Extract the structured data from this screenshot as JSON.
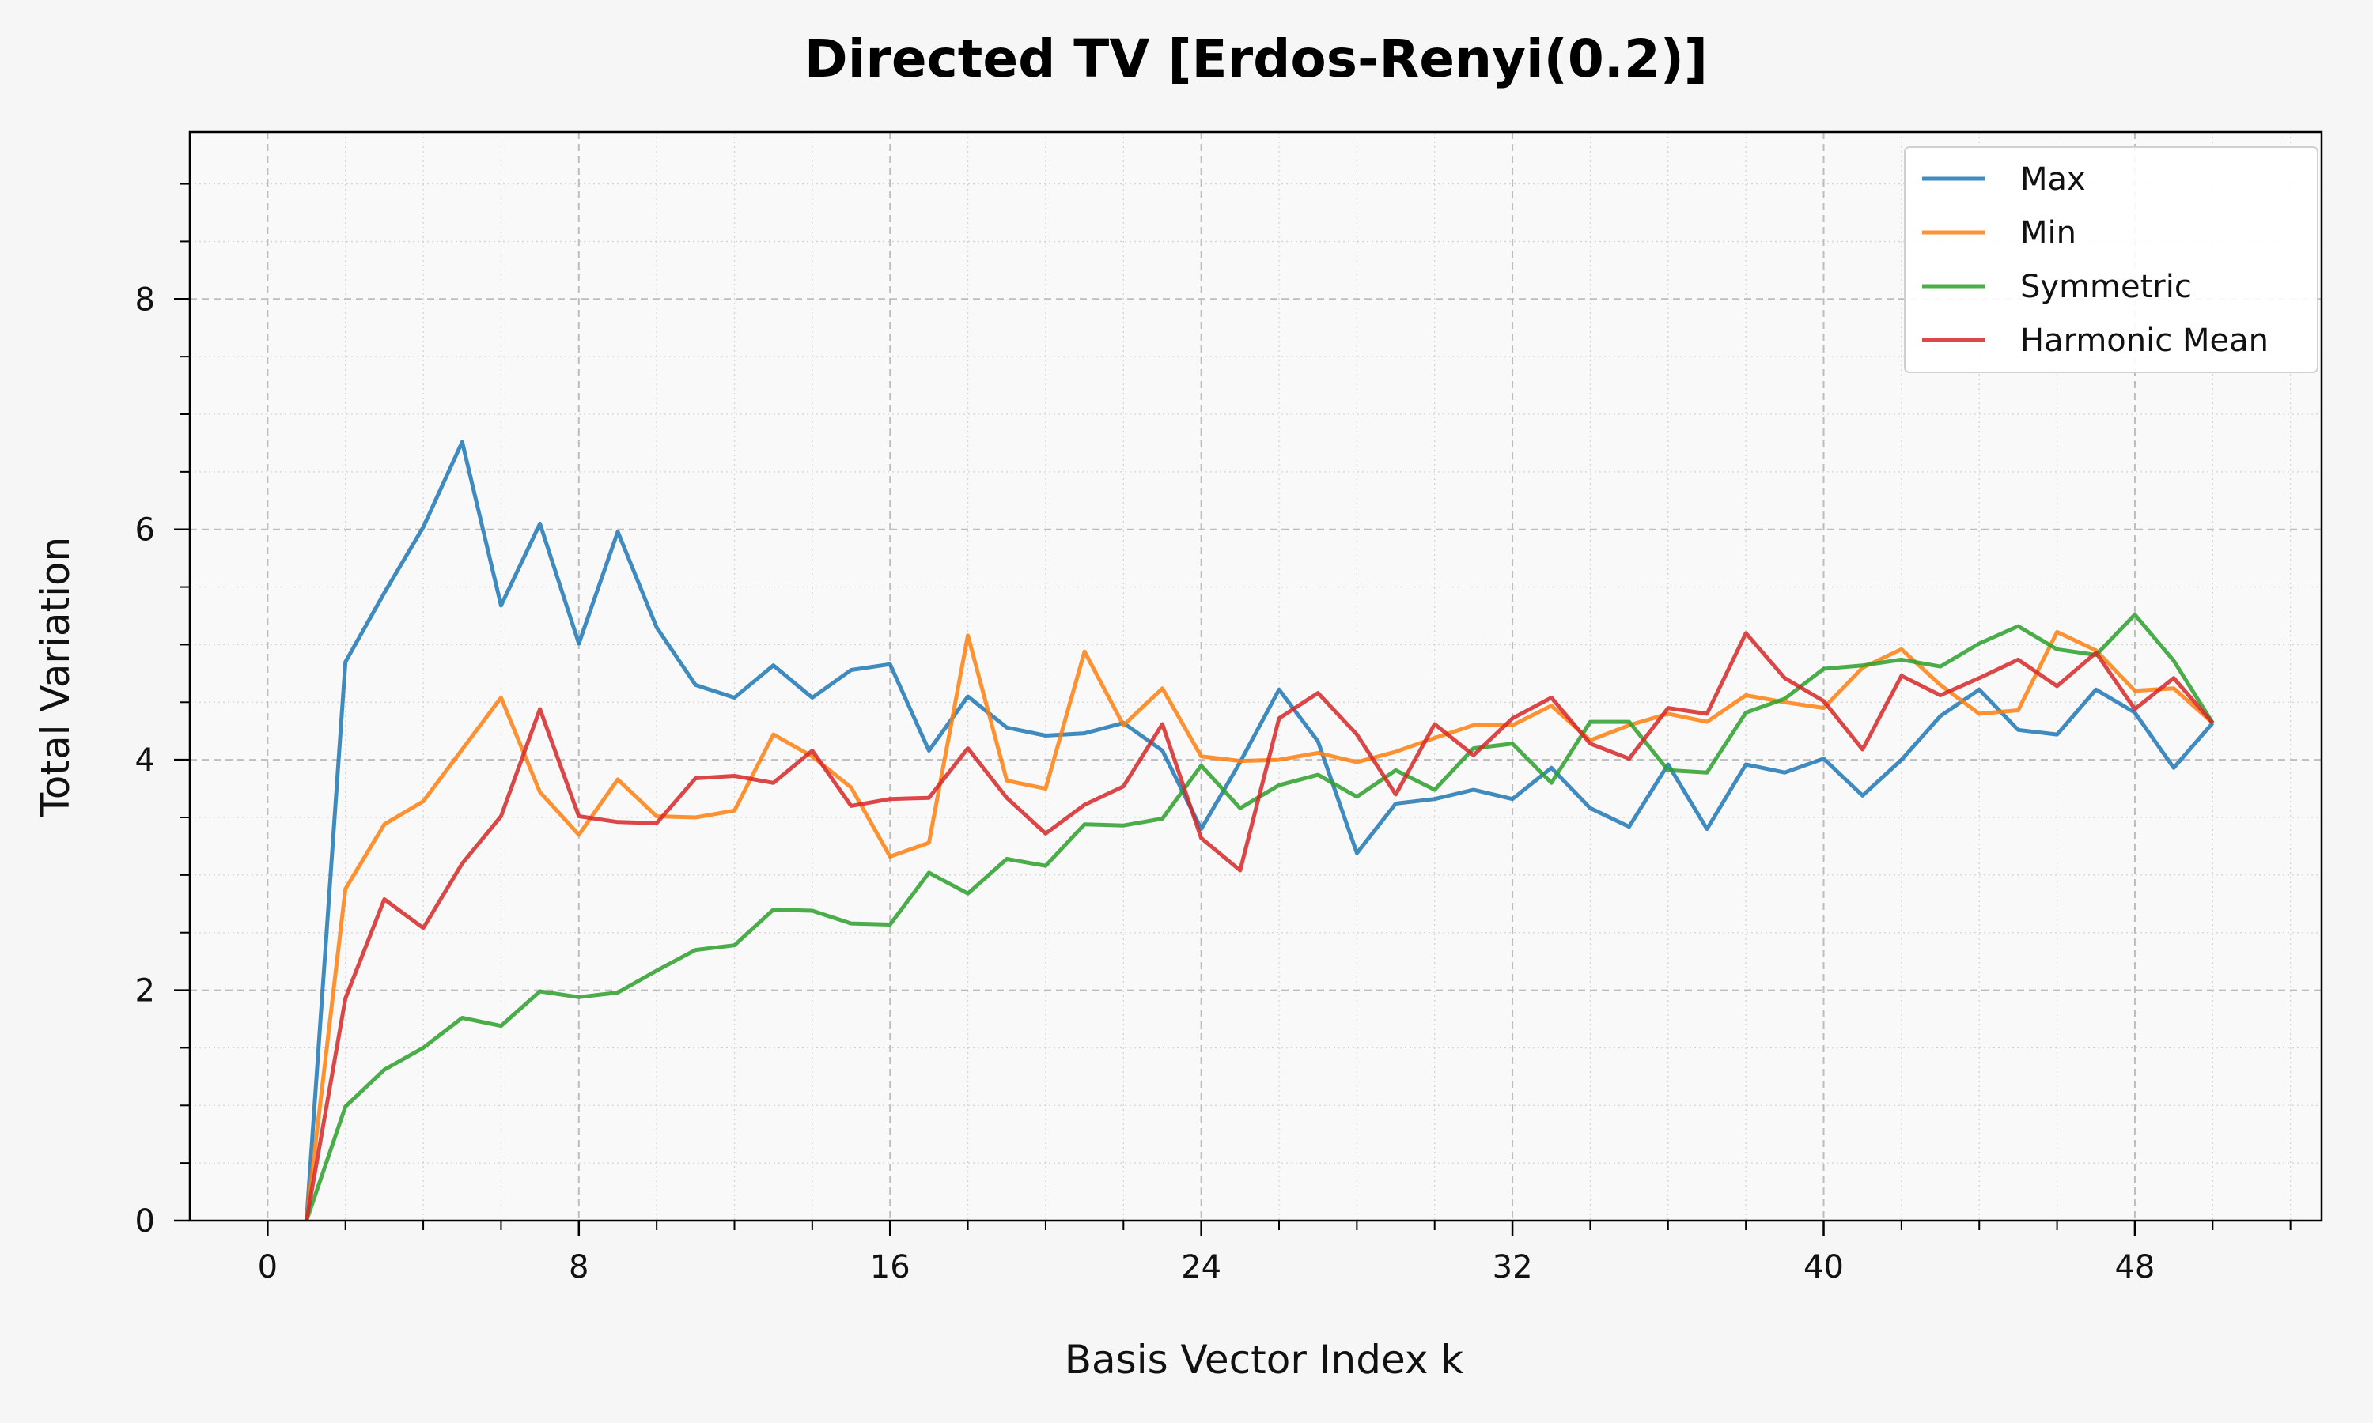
{
  "chart_data": {
    "type": "line",
    "title": "Directed TV [Erdos-Renyi(0.2)]",
    "xlabel": "Basis Vector Index k",
    "ylabel": "Total Variation",
    "xlim": [
      -2,
      52.8
    ],
    "ylim": [
      0,
      9.45
    ],
    "xticks": [
      0,
      8,
      16,
      24,
      32,
      40,
      48
    ],
    "yticks": [
      0,
      2,
      4,
      6,
      8
    ],
    "grid": true,
    "legend_position": "top-right",
    "x": [
      1,
      2,
      3,
      4,
      5,
      6,
      7,
      8,
      9,
      10,
      11,
      12,
      13,
      14,
      15,
      16,
      17,
      18,
      19,
      20,
      21,
      22,
      23,
      24,
      25,
      26,
      27,
      28,
      29,
      30,
      31,
      32,
      33,
      34,
      35,
      36,
      37,
      38,
      39,
      40,
      41,
      42,
      43,
      44,
      45,
      46,
      47,
      48,
      49,
      50
    ],
    "series": [
      {
        "name": "Max",
        "color": "#1f77b4",
        "values": [
          0,
          4.85,
          5.45,
          6.02,
          6.76,
          5.34,
          6.05,
          5.01,
          5.98,
          5.15,
          4.65,
          4.54,
          4.82,
          4.54,
          4.78,
          4.83,
          4.08,
          4.55,
          4.28,
          4.21,
          4.23,
          4.32,
          4.08,
          3.4,
          3.98,
          4.61,
          4.16,
          3.19,
          3.62,
          3.66,
          3.74,
          3.66,
          3.93,
          3.58,
          3.42,
          3.96,
          3.4,
          3.96,
          3.89,
          4.01,
          3.69,
          4.0,
          4.38,
          4.61,
          4.26,
          4.22,
          4.61,
          4.41,
          3.93,
          4.32
        ]
      },
      {
        "name": "Min",
        "color": "#ff7f0e",
        "values": [
          0,
          2.88,
          3.44,
          3.64,
          4.09,
          4.54,
          3.72,
          3.35,
          3.83,
          3.51,
          3.5,
          3.56,
          4.22,
          4.03,
          3.76,
          3.16,
          3.28,
          5.08,
          3.82,
          3.75,
          4.94,
          4.3,
          4.62,
          4.03,
          3.99,
          4.0,
          4.06,
          3.98,
          4.07,
          4.19,
          4.3,
          4.3,
          4.47,
          4.17,
          4.3,
          4.4,
          4.33,
          4.56,
          4.5,
          4.45,
          4.8,
          4.96,
          4.65,
          4.4,
          4.43,
          5.11,
          4.95,
          4.6,
          4.62,
          4.32
        ]
      },
      {
        "name": "Symmetric",
        "color": "#2ca02c",
        "values": [
          0,
          0.99,
          1.31,
          1.5,
          1.76,
          1.69,
          1.99,
          1.94,
          1.98,
          2.17,
          2.35,
          2.39,
          2.7,
          2.69,
          2.58,
          2.57,
          3.02,
          2.84,
          3.14,
          3.08,
          3.44,
          3.43,
          3.49,
          3.95,
          3.58,
          3.78,
          3.87,
          3.68,
          3.91,
          3.74,
          4.1,
          4.14,
          3.8,
          4.33,
          4.33,
          3.91,
          3.89,
          4.41,
          4.53,
          4.79,
          4.82,
          4.87,
          4.81,
          5.01,
          5.16,
          4.96,
          4.91,
          5.26,
          4.86,
          4.32
        ]
      },
      {
        "name": "Harmonic Mean",
        "color": "#d62728",
        "values": [
          0,
          1.93,
          2.79,
          2.54,
          3.1,
          3.51,
          4.44,
          3.51,
          3.46,
          3.45,
          3.84,
          3.86,
          3.8,
          4.08,
          3.6,
          3.66,
          3.67,
          4.1,
          3.67,
          3.36,
          3.61,
          3.77,
          4.31,
          3.32,
          3.04,
          4.36,
          4.58,
          4.22,
          3.7,
          4.31,
          4.04,
          4.36,
          4.54,
          4.14,
          4.01,
          4.45,
          4.4,
          5.1,
          4.71,
          4.51,
          4.09,
          4.73,
          4.56,
          4.71,
          4.87,
          4.64,
          4.93,
          4.44,
          4.71,
          4.32
        ]
      }
    ]
  }
}
